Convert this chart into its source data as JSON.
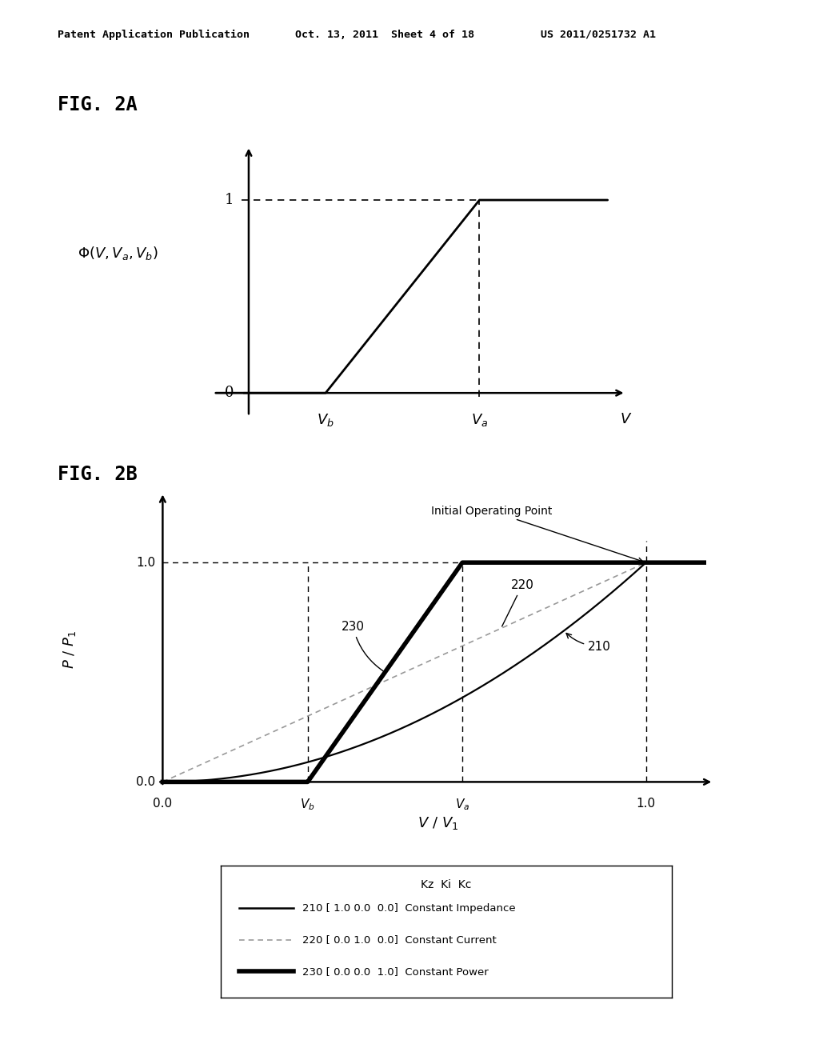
{
  "header_left": "Patent Application Publication",
  "header_mid": "Oct. 13, 2011  Sheet 4 of 18",
  "header_right": "US 2011/0251732 A1",
  "fig2a_label": "FIG. 2A",
  "fig2b_label": "FIG. 2B",
  "fig2a_vb": 0.28,
  "fig2a_va": 0.7,
  "fig2b_vb": 0.3,
  "fig2b_va": 0.62,
  "legend_title": "Kz  Ki  Kc",
  "legend_210": "210 [ 1.0 0.0  0.0]  Constant Impedance",
  "legend_220": "220 [ 0.0 1.0  0.0]  Constant Current",
  "legend_230": "230 [ 0.0 0.0  1.0]  Constant Power",
  "bg_color": "#ffffff",
  "line_color": "#000000"
}
